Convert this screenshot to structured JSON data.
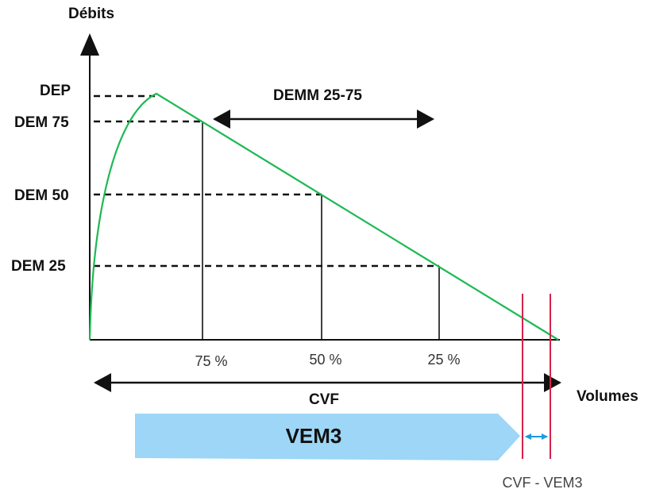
{
  "axes": {
    "y_label": "Débits",
    "x_label": "Volumes"
  },
  "levels": {
    "dep": "DEP",
    "dem75": "DEM 75",
    "dem50": "DEM 50",
    "dem25": "DEM 25"
  },
  "demm": "DEMM 25-75",
  "percents": [
    "75 %",
    "50 %",
    "25 %"
  ],
  "cvf": "CVF",
  "vem3": "VEM3",
  "difference": "CVF - VEM3"
}
